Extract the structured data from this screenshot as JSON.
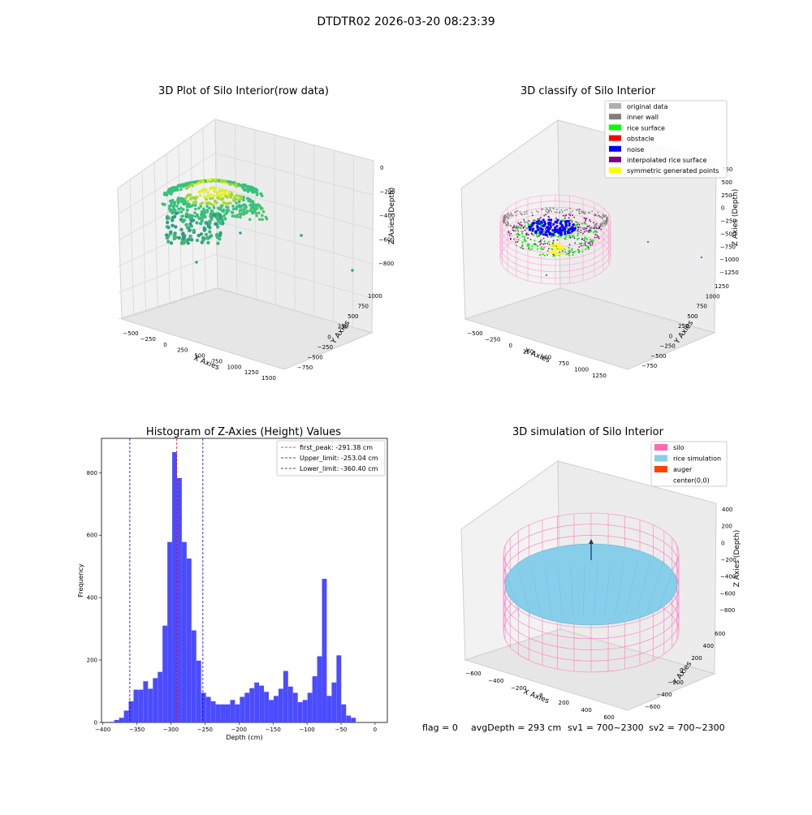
{
  "figure": {
    "suptitle": "DTDTR02 2026-03-20 08:23:39",
    "footer": {
      "flag": "flag = 0",
      "avg_depth": "avgDepth = 293 cm",
      "sv1": "sv1 = 700~2300",
      "sv2": "sv2 = 700~2300"
    }
  },
  "colors": {
    "histogram_bar": "#4b4bff",
    "first_peak_line": "#ff0000",
    "limit_line": "#0000cc",
    "original_data": "#b0b0b0",
    "inner_wall": "#7f7f7f",
    "rice_surface": "#00ff00",
    "obstacle": "#ff0000",
    "noise": "#0000ff",
    "interpolated_rice_surface": "#800080",
    "symmetric_generated_points": "#ffff00",
    "silo": "#ff69b4",
    "rice_simulation": "#87ceeb",
    "auger": "#ff4500"
  },
  "panel_raw": {
    "title": "3D Plot of Silo Interior(row data)",
    "xlabel": "X Axies",
    "ylabel": "Y Axies",
    "zlabel": "Z Axies (Depth)",
    "xticks": [
      "−500",
      "−250",
      "0",
      "250",
      "500",
      "750",
      "1000",
      "1250",
      "1500"
    ],
    "yticks": [
      "−750",
      "−500",
      "−250",
      "0",
      "250",
      "500",
      "750",
      "1000"
    ],
    "zticks": [
      "0",
      "−200",
      "−400",
      "−600",
      "−800"
    ]
  },
  "panel_classify": {
    "title": "3D classify of Silo Interior",
    "xlabel": "X Axies",
    "ylabel": "Y Axies",
    "zlabel": "Z Axies (Depth)",
    "xticks": [
      "−500",
      "−250",
      "0",
      "250",
      "500",
      "750",
      "1000",
      "1250"
    ],
    "yticks": [
      "−750",
      "−500",
      "−250",
      "0",
      "250",
      "500",
      "750",
      "1000",
      "1250"
    ],
    "zticks": [
      "750",
      "500",
      "250",
      "0",
      "−250",
      "−500",
      "−750",
      "−1000",
      "−1250"
    ],
    "legend": [
      {
        "label": "original data",
        "color": "#b0b0b0"
      },
      {
        "label": "inner wall",
        "color": "#7f7f7f"
      },
      {
        "label": "rice surface",
        "color": "#00ff00"
      },
      {
        "label": "obstacle",
        "color": "#ff0000"
      },
      {
        "label": "noise",
        "color": "#0000ff"
      },
      {
        "label": "interpolated rice surface",
        "color": "#800080"
      },
      {
        "label": "symmetric generated points",
        "color": "#ffff00"
      }
    ]
  },
  "panel_sim": {
    "title": "3D simulation of Silo Interior",
    "xlabel": "X Axies",
    "ylabel": "Y Axies",
    "zlabel": "Z Axies (Depth)",
    "xticks": [
      "−600",
      "−400",
      "−200",
      "0",
      "200",
      "400",
      "600"
    ],
    "yticks": [
      "−600",
      "−400",
      "−200",
      "0",
      "200",
      "400",
      "600"
    ],
    "zticks": [
      "400",
      "200",
      "0",
      "−200",
      "−400",
      "−600",
      "−800"
    ],
    "legend": [
      {
        "label": "silo",
        "color": "#ff69b4"
      },
      {
        "label": "rice simulation",
        "color": "#87ceeb"
      },
      {
        "label": "auger",
        "color": "#ff4500"
      },
      {
        "label": "center(0,0)",
        "color": ""
      }
    ]
  },
  "chart_data": {
    "type": "bar",
    "title": "Histogram of Z-Axies (Height) Values",
    "xlabel": "Depth (cm)",
    "ylabel": "Frequency",
    "xlim": [
      -402,
      18
    ],
    "ylim": [
      0,
      910
    ],
    "xticks": [
      -400,
      -350,
      -300,
      -250,
      -200,
      -150,
      -100,
      -50,
      0
    ],
    "yticks": [
      0,
      200,
      400,
      600,
      800
    ],
    "bin_width": 7.1,
    "bins": [
      {
        "x0": -390.4,
        "value": 2
      },
      {
        "x0": -383.3,
        "value": 8
      },
      {
        "x0": -376.2,
        "value": 15
      },
      {
        "x0": -369.1,
        "value": 38
      },
      {
        "x0": -362.0,
        "value": 68
      },
      {
        "x0": -354.9,
        "value": 105
      },
      {
        "x0": -347.8,
        "value": 105
      },
      {
        "x0": -340.7,
        "value": 132
      },
      {
        "x0": -333.6,
        "value": 108
      },
      {
        "x0": -326.5,
        "value": 142
      },
      {
        "x0": -319.4,
        "value": 162
      },
      {
        "x0": -312.3,
        "value": 310
      },
      {
        "x0": -305.2,
        "value": 578
      },
      {
        "x0": -298.1,
        "value": 866
      },
      {
        "x0": -291.0,
        "value": 783
      },
      {
        "x0": -283.9,
        "value": 578
      },
      {
        "x0": -276.8,
        "value": 525
      },
      {
        "x0": -269.7,
        "value": 295
      },
      {
        "x0": -262.6,
        "value": 198
      },
      {
        "x0": -255.5,
        "value": 95
      },
      {
        "x0": -248.4,
        "value": 82
      },
      {
        "x0": -241.3,
        "value": 68
      },
      {
        "x0": -234.2,
        "value": 58
      },
      {
        "x0": -227.1,
        "value": 58
      },
      {
        "x0": -220.0,
        "value": 58
      },
      {
        "x0": -212.9,
        "value": 72
      },
      {
        "x0": -205.8,
        "value": 58
      },
      {
        "x0": -198.7,
        "value": 82
      },
      {
        "x0": -191.6,
        "value": 95
      },
      {
        "x0": -184.5,
        "value": 110
      },
      {
        "x0": -177.4,
        "value": 128
      },
      {
        "x0": -170.3,
        "value": 118
      },
      {
        "x0": -163.2,
        "value": 98
      },
      {
        "x0": -156.1,
        "value": 72
      },
      {
        "x0": -149.0,
        "value": 85
      },
      {
        "x0": -141.9,
        "value": 108
      },
      {
        "x0": -134.8,
        "value": 165
      },
      {
        "x0": -127.7,
        "value": 115
      },
      {
        "x0": -120.6,
        "value": 95
      },
      {
        "x0": -113.5,
        "value": 65
      },
      {
        "x0": -106.4,
        "value": 72
      },
      {
        "x0": -99.3,
        "value": 95
      },
      {
        "x0": -92.2,
        "value": 148
      },
      {
        "x0": -85.1,
        "value": 212
      },
      {
        "x0": -78.0,
        "value": 460
      },
      {
        "x0": -70.9,
        "value": 85
      },
      {
        "x0": -63.8,
        "value": 128
      },
      {
        "x0": -56.7,
        "value": 215
      },
      {
        "x0": -49.6,
        "value": 58
      },
      {
        "x0": -42.5,
        "value": 22
      },
      {
        "x0": -35.4,
        "value": 15
      }
    ],
    "vlines": [
      {
        "label": "first_peak: -291.38 cm",
        "x": -291.38,
        "color": "#ff0000"
      },
      {
        "label": "Upper_limit: -253.04 cm",
        "x": -253.04,
        "color": "#0000cc"
      },
      {
        "label": "Lower_limit: -360.40 cm",
        "x": -360.4,
        "color": "#0000cc"
      }
    ],
    "legend_position": "top-right"
  }
}
